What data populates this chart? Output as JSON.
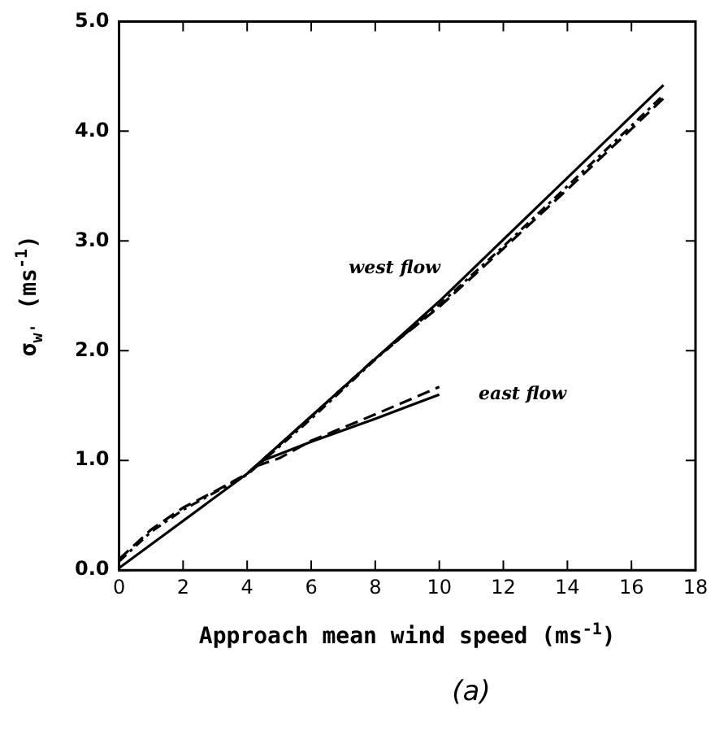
{
  "chart_data": {
    "type": "line",
    "xlabel": "Approach mean wind speed (ms$^{-1}$)",
    "ylabel": "σ$_{w'}$ (ms$^{-1}$)",
    "xlim": [
      0,
      18
    ],
    "xticks": [
      0,
      2,
      4,
      6,
      8,
      10,
      12,
      14,
      16,
      18
    ],
    "ylim": [
      0,
      5
    ],
    "yticks": [
      {
        "value": 0,
        "label": "0.0"
      },
      {
        "value": 1,
        "label": "1.0"
      },
      {
        "value": 2,
        "label": "2.0"
      },
      {
        "value": 3,
        "label": "3.0"
      },
      {
        "value": 4,
        "label": "4.0"
      },
      {
        "value": 5,
        "label": "5.0"
      }
    ],
    "grid": false,
    "legend": false,
    "marker": "none",
    "series": [
      {
        "color": "#000000",
        "line_style": "solid",
        "x": [
          0,
          4,
          10,
          17
        ],
        "values": [
          0.02,
          0.88,
          2.45,
          4.42
        ]
      },
      {
        "color": "#000000",
        "line_style": "dashed",
        "x": [
          0,
          1,
          2,
          3,
          4,
          6,
          8,
          10,
          12,
          14,
          16,
          17
        ],
        "values": [
          0.1,
          0.37,
          0.57,
          0.72,
          0.88,
          1.4,
          1.93,
          2.4,
          2.93,
          3.47,
          4.02,
          4.3
        ]
      },
      {
        "color": "#000000",
        "line_style": "dotted",
        "x": [
          0,
          1,
          2,
          3,
          4,
          6,
          8,
          10,
          12,
          14,
          16,
          17
        ],
        "values": [
          0.08,
          0.35,
          0.55,
          0.71,
          0.87,
          1.38,
          1.92,
          2.42,
          2.95,
          3.5,
          4.05,
          4.33
        ]
      },
      {
        "color": "#000000",
        "line_style": "solid",
        "x": [
          4.5,
          6,
          8,
          10
        ],
        "values": [
          1.0,
          1.17,
          1.38,
          1.6
        ]
      },
      {
        "color": "#000000",
        "line_style": "dashed",
        "x": [
          4.3,
          5,
          6,
          8,
          10
        ],
        "values": [
          0.95,
          1.02,
          1.18,
          1.42,
          1.67
        ]
      }
    ],
    "annotations": [
      "west flow",
      "east flow",
      "(a)"
    ]
  }
}
